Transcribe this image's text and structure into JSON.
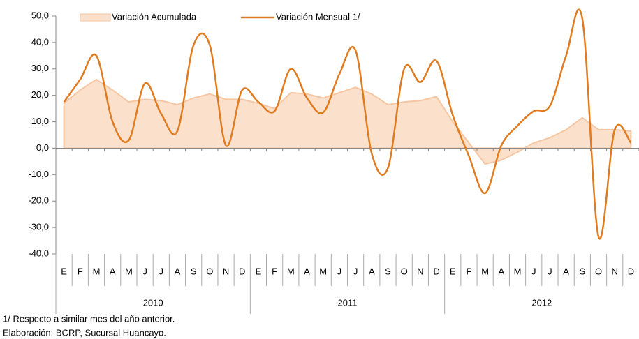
{
  "chart_data": {
    "type": "line",
    "categories": [
      "E",
      "F",
      "M",
      "A",
      "M",
      "J",
      "J",
      "A",
      "S",
      "O",
      "N",
      "D",
      "E",
      "F",
      "M",
      "A",
      "M",
      "J",
      "J",
      "A",
      "S",
      "O",
      "N",
      "D",
      "E",
      "F",
      "M",
      "A",
      "M",
      "J",
      "J",
      "A",
      "S",
      "O",
      "N",
      "D"
    ],
    "years": [
      "2010",
      "2011",
      "2012"
    ],
    "series": [
      {
        "name": "Variación Acumulada",
        "kind": "area",
        "color": "#fbe0cc",
        "edge_color": "#f6c6a2",
        "values": [
          17,
          22,
          26,
          22,
          17.5,
          18.5,
          18,
          16.5,
          19,
          20.5,
          18.5,
          18.5,
          17,
          15,
          21,
          20.5,
          19,
          21,
          23,
          20.5,
          16.5,
          17.5,
          18,
          19.5,
          10,
          2,
          -6,
          -4.5,
          -1.5,
          2,
          4,
          7,
          11.5,
          7,
          7,
          6.5
        ]
      },
      {
        "name": "Variación Mensual 1/",
        "kind": "line",
        "color": "#e07b20",
        "values": [
          17.5,
          26,
          35,
          10,
          3,
          24.5,
          13,
          6.5,
          39,
          39,
          1,
          22,
          17.5,
          14,
          30,
          19,
          13.5,
          28,
          37,
          -2,
          -7.5,
          30,
          25,
          33,
          12.5,
          -3,
          -17,
          1,
          8.5,
          14,
          16,
          35,
          49,
          -33.5,
          7,
          2
        ]
      }
    ],
    "ylim": [
      -40,
      50
    ],
    "yticks": [
      {
        "value": -40,
        "label": "-40,0"
      },
      {
        "value": -30,
        "label": "-30,0"
      },
      {
        "value": -20,
        "label": "-20,0"
      },
      {
        "value": -10,
        "label": "-10,0"
      },
      {
        "value": 0,
        "label": "0,0"
      },
      {
        "value": 10,
        "label": "10,0"
      },
      {
        "value": 20,
        "label": "20,0"
      },
      {
        "value": 30,
        "label": "30,0"
      },
      {
        "value": 40,
        "label": "40,0"
      },
      {
        "value": 50,
        "label": "50,0"
      }
    ],
    "notes": [
      "1/ Respecto a similar mes del año anterior.",
      "Elaboración: BCRP, Sucursal Huancayo."
    ]
  }
}
